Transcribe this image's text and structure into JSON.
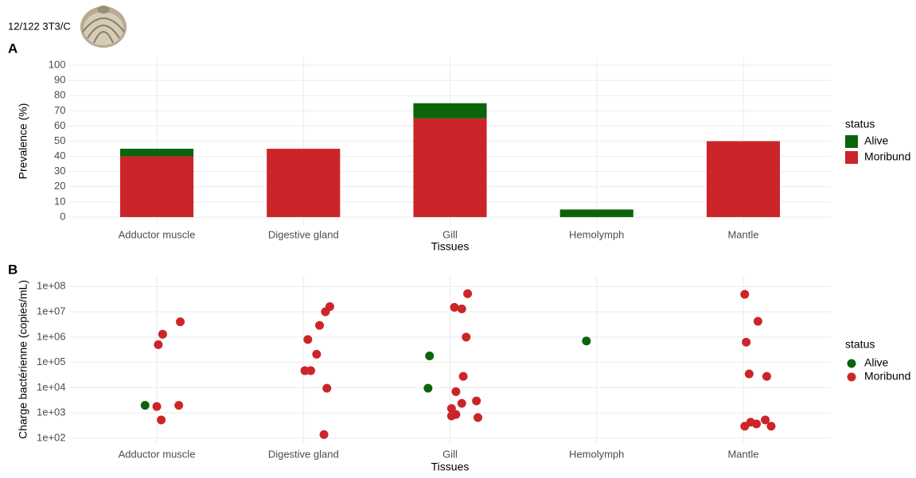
{
  "header": {
    "label": "12/122 3T3/C"
  },
  "chart_data": [
    {
      "type": "bar",
      "stacked": true,
      "label": "A",
      "x_label": "Tissues",
      "y_label": "Prevalence (%)",
      "legend_title": "status",
      "legend": "right",
      "grid": true,
      "categories": [
        "Adductor muscle",
        "Digestive gland",
        "Gill",
        "Hemolymph",
        "Mantle"
      ],
      "series": [
        {
          "name": "Alive",
          "color": "#0b640b",
          "values": [
            5,
            0,
            10,
            5,
            0
          ]
        },
        {
          "name": "Moribund",
          "color": "#cc2529",
          "values": [
            40,
            45,
            65,
            0,
            50
          ]
        }
      ],
      "ylim": [
        -5,
        105
      ],
      "yticks": [
        0,
        10,
        20,
        30,
        40,
        50,
        60,
        70,
        80,
        90,
        100
      ]
    },
    {
      "type": "scatter",
      "label": "B",
      "log_y": true,
      "x_label": "Tissues",
      "y_label": "Charge bactérienne (copies/mL)",
      "legend_title": "status",
      "legend": "right",
      "grid": true,
      "xlim": [
        0.4,
        5.6
      ],
      "xticks": [
        {
          "value": 1,
          "label": "Adductor muscle"
        },
        {
          "value": 2,
          "label": "Digestive gland"
        },
        {
          "value": 3,
          "label": "Gill"
        },
        {
          "value": 4,
          "label": "Hemolymph"
        },
        {
          "value": 5,
          "label": "Mantle"
        }
      ],
      "ylim": [
        65,
        260000000
      ],
      "yticks": [
        {
          "value": 100,
          "label": "1e+02"
        },
        {
          "value": 1000,
          "label": "1e+03"
        },
        {
          "value": 10000,
          "label": "1e+04"
        },
        {
          "value": 100000,
          "label": "1e+05"
        },
        {
          "value": 1000000,
          "label": "1e+06"
        },
        {
          "value": 10000000,
          "label": "1e+07"
        },
        {
          "value": 100000000,
          "label": "1e+08"
        }
      ],
      "series": [
        {
          "name": "Alive",
          "color": "#0b640b",
          "x": [
            0.92,
            2.86,
            2.85,
            3.93
          ],
          "values": [
            2000,
            180000,
            9500,
            700000
          ]
        },
        {
          "name": "Moribund",
          "color": "#cc2529",
          "x": [
            1.16,
            1.04,
            1.01,
            1.0,
            1.15,
            1.03,
            2.18,
            2.15,
            2.11,
            2.03,
            2.09,
            2.01,
            2.05,
            2.16,
            2.14,
            3.12,
            3.03,
            3.08,
            3.11,
            3.09,
            3.04,
            3.18,
            3.08,
            3.01,
            3.04,
            3.01,
            3.19,
            5.01,
            5.1,
            5.02,
            5.04,
            5.16,
            5.15,
            5.05,
            5.09,
            5.01,
            5.19
          ],
          "values": [
            4000000,
            1300000,
            500000,
            1800,
            2000,
            530,
            16000000,
            10000000,
            2900000,
            800000,
            210000,
            47000,
            47000,
            9500,
            140,
            52000000,
            15000000,
            13000000,
            1000000,
            28000,
            7000,
            3000,
            2400,
            1500,
            870,
            760,
            660,
            49000000,
            4200000,
            630000,
            35000,
            28000,
            530,
            430,
            370,
            300,
            300
          ]
        }
      ]
    }
  ]
}
